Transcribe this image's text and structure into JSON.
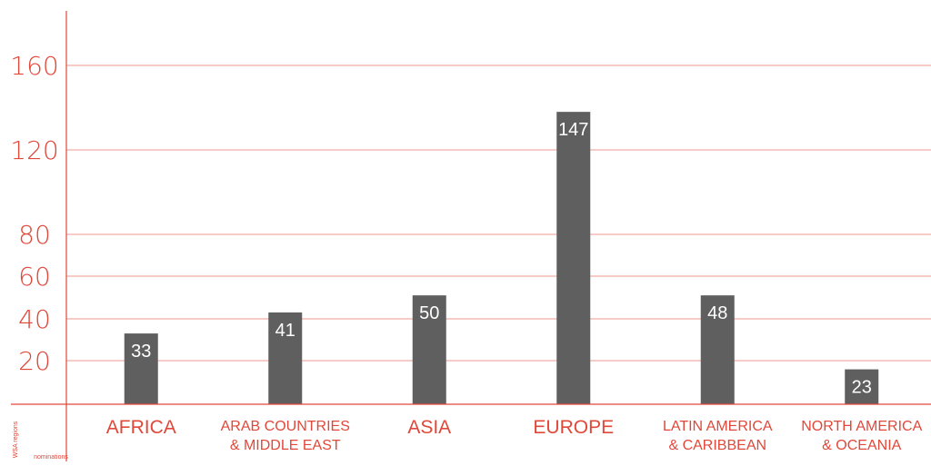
{
  "chart_data": {
    "type": "bar",
    "categories": [
      [
        "AFRICA"
      ],
      [
        "ARAB COUNTRIES",
        "& MIDDLE EAST"
      ],
      [
        "ASIA"
      ],
      [
        "EUROPE"
      ],
      [
        "LATIN AMERICA",
        "& CARIBBEAN"
      ],
      [
        "NORTH AMERICA",
        "& OCEANIA"
      ]
    ],
    "values": [
      33,
      41,
      50,
      147,
      48,
      23
    ],
    "bar_heights": [
      33,
      43,
      51,
      138,
      51,
      16
    ],
    "y_ticks": [
      20,
      40,
      60,
      80,
      120,
      160
    ],
    "xlabel": "WSA regions",
    "ylabel": "nominations",
    "grid": true,
    "colors": {
      "accent": "#e0483a",
      "bar": "#5f5f5f",
      "gridline": "#ef9a92",
      "data_label": "#ffffff"
    }
  }
}
